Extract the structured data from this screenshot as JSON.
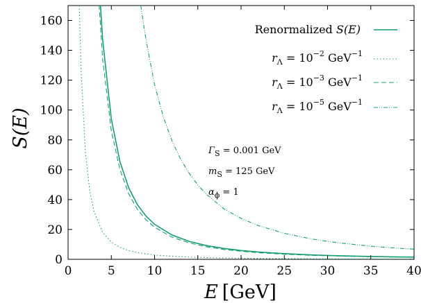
{
  "chart_data": {
    "type": "line",
    "xlabel": {
      "var": "E",
      "unit": "[GeV]"
    },
    "ylabel": "S(E)",
    "xlim": [
      0,
      40
    ],
    "ylim": [
      0,
      170
    ],
    "xticks": [
      0,
      5,
      10,
      15,
      20,
      25,
      30,
      35,
      40
    ],
    "yticks": [
      0,
      20,
      40,
      60,
      80,
      100,
      120,
      140,
      160
    ],
    "grid": false,
    "legend_position": "top-right",
    "line_color": "#16a06a",
    "series": [
      {
        "key": "renorm",
        "name": "Renormalized S(E)",
        "name_parts": {
          "text": "Renormalized ",
          "var": "S(E)"
        },
        "style": "solid",
        "x": [
          3.5,
          4,
          5,
          6,
          7,
          8,
          9,
          10,
          12,
          14,
          16,
          18,
          20,
          22,
          25,
          28,
          30,
          32,
          35,
          38,
          40
        ],
        "y": [
          192,
          147,
          94,
          65.3,
          48,
          36.7,
          29,
          23.5,
          16.3,
          12,
          9.2,
          7.3,
          5.9,
          4.9,
          3.8,
          3.0,
          2.6,
          2.3,
          1.9,
          1.6,
          1.5
        ]
      },
      {
        "key": "r2",
        "name": "r_Λ = 10^-2 GeV^-1",
        "name_parts": {
          "base": "10",
          "exp": "−2",
          "unit": " GeV",
          "unit_exp": "−1"
        },
        "style": "dotted",
        "x": [
          1.3,
          1.5,
          2,
          2.5,
          3,
          4,
          5,
          6,
          7,
          8,
          10,
          12,
          15,
          18,
          20,
          25,
          30,
          35,
          40
        ],
        "y": [
          170,
          127,
          72,
          46,
          32,
          18,
          11.5,
          8,
          5.9,
          4.5,
          2.9,
          2.0,
          1.3,
          0.9,
          0.7,
          0.46,
          0.32,
          0.24,
          0.18
        ]
      },
      {
        "key": "r3",
        "name": "r_Λ = 10^-3 GeV^-1",
        "name_parts": {
          "base": "10",
          "exp": "−3",
          "unit": " GeV",
          "unit_exp": "−1"
        },
        "style": "dashed",
        "x": [
          3.3,
          4,
          5,
          6,
          7,
          8,
          9,
          10,
          12,
          14,
          16,
          18,
          20,
          22,
          25,
          28,
          30,
          32,
          35,
          38,
          40
        ],
        "y": [
          196,
          134,
          86,
          60,
          44,
          33.6,
          26.5,
          21.5,
          14.9,
          11,
          8.4,
          6.6,
          5.4,
          4.4,
          3.4,
          2.7,
          2.4,
          2.1,
          1.76,
          1.49,
          1.34
        ]
      },
      {
        "key": "r5",
        "name": "r_Λ = 10^-5 GeV^-1",
        "name_parts": {
          "base": "10",
          "exp": "−5",
          "unit": " GeV",
          "unit_exp": "−1"
        },
        "style": "dashdot",
        "x": [
          8.4,
          9,
          10,
          11,
          12,
          13,
          14,
          15,
          16,
          18,
          20,
          22,
          25,
          28,
          30,
          32,
          35,
          38,
          40
        ],
        "y": [
          170,
          147.4,
          117,
          95.6,
          79.6,
          67.3,
          57.6,
          49.8,
          43.5,
          33.9,
          27.4,
          22.6,
          17.4,
          13.8,
          12,
          10.6,
          8.8,
          7.5,
          6.8
        ]
      }
    ],
    "annotations": [
      {
        "var": "Γ",
        "sub": "S",
        "text": " = 0.001 GeV"
      },
      {
        "var": "m",
        "sub": "S",
        "text": " = 125 GeV"
      },
      {
        "var": "α",
        "sub": "ϕ",
        "text": " = 1"
      }
    ],
    "legend_var": {
      "var": "r",
      "sub": "Λ",
      "eq": " = "
    }
  }
}
